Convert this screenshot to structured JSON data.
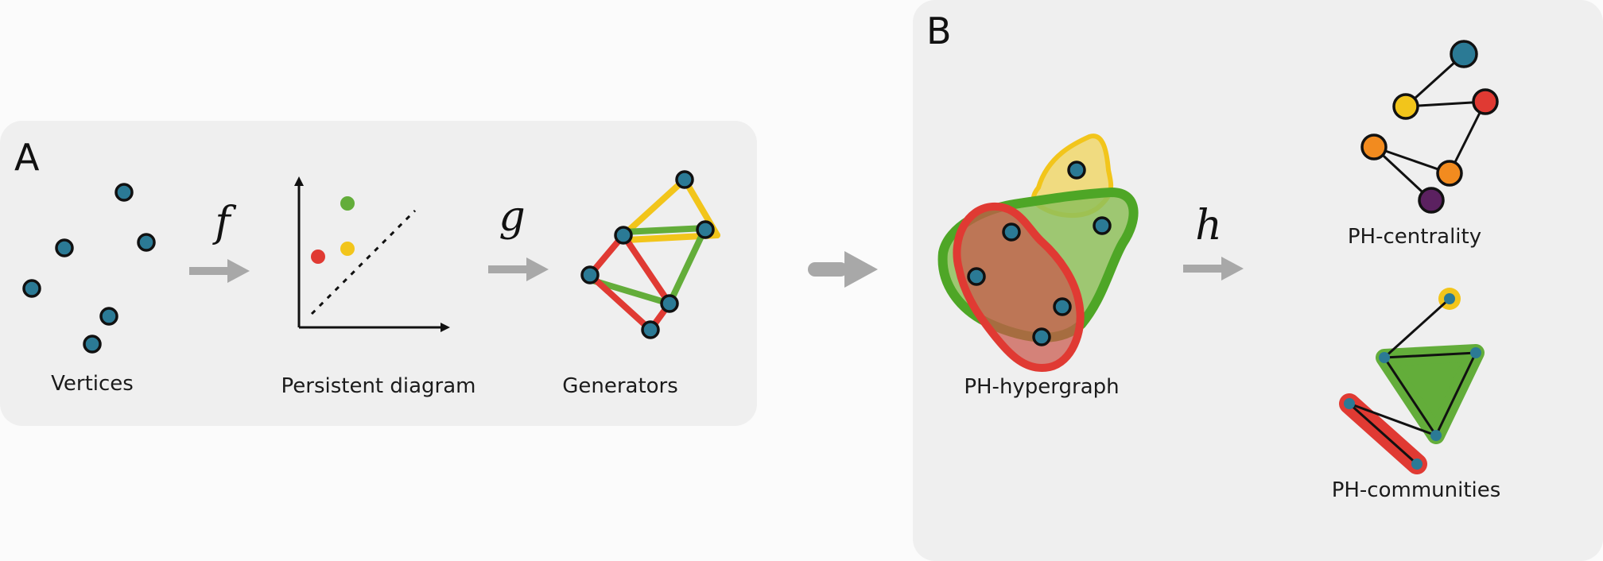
{
  "panel_a": {
    "letter": "A",
    "labels": {
      "vertices": "Vertices",
      "diagram": "Persistent diagram",
      "generators": "Generators"
    },
    "arrows": {
      "f": "f",
      "g": "g"
    }
  },
  "panel_b": {
    "letter": "B",
    "labels": {
      "hypergraph": "PH-hypergraph",
      "centrality": "PH-centrality",
      "communities": "PH-communities"
    },
    "arrows": {
      "h": "h"
    }
  },
  "colors": {
    "vertex": "#2b7a95",
    "red": "#e03a33",
    "yellow": "#f2c51b",
    "green": "#63ad3a",
    "orange": "#f28b1f",
    "purple": "#5b2160",
    "arrow": "#a8a8a8",
    "panel_bg": "#efefef"
  }
}
